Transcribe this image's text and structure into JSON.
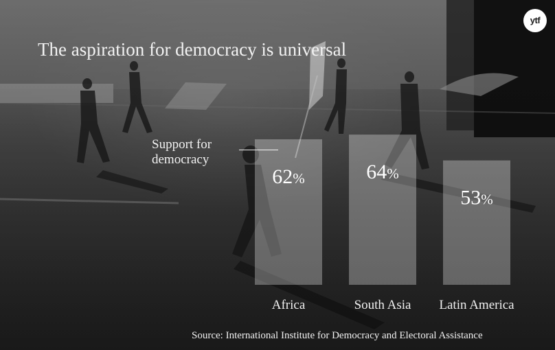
{
  "title": "The aspiration for democracy is universal",
  "logo_text": "ytf",
  "source": "Source: International Institute for Democracy and Electoral Assistance",
  "chart_data": {
    "type": "bar",
    "title": "The aspiration for democracy is universal",
    "ylabel_lines": [
      "Support for",
      "democracy"
    ],
    "categories": [
      "Africa",
      "South Asia",
      "Latin America"
    ],
    "values": [
      62,
      64,
      53
    ],
    "value_suffix": "%",
    "ylim": [
      0,
      100
    ],
    "grid": false,
    "legend": "none"
  }
}
